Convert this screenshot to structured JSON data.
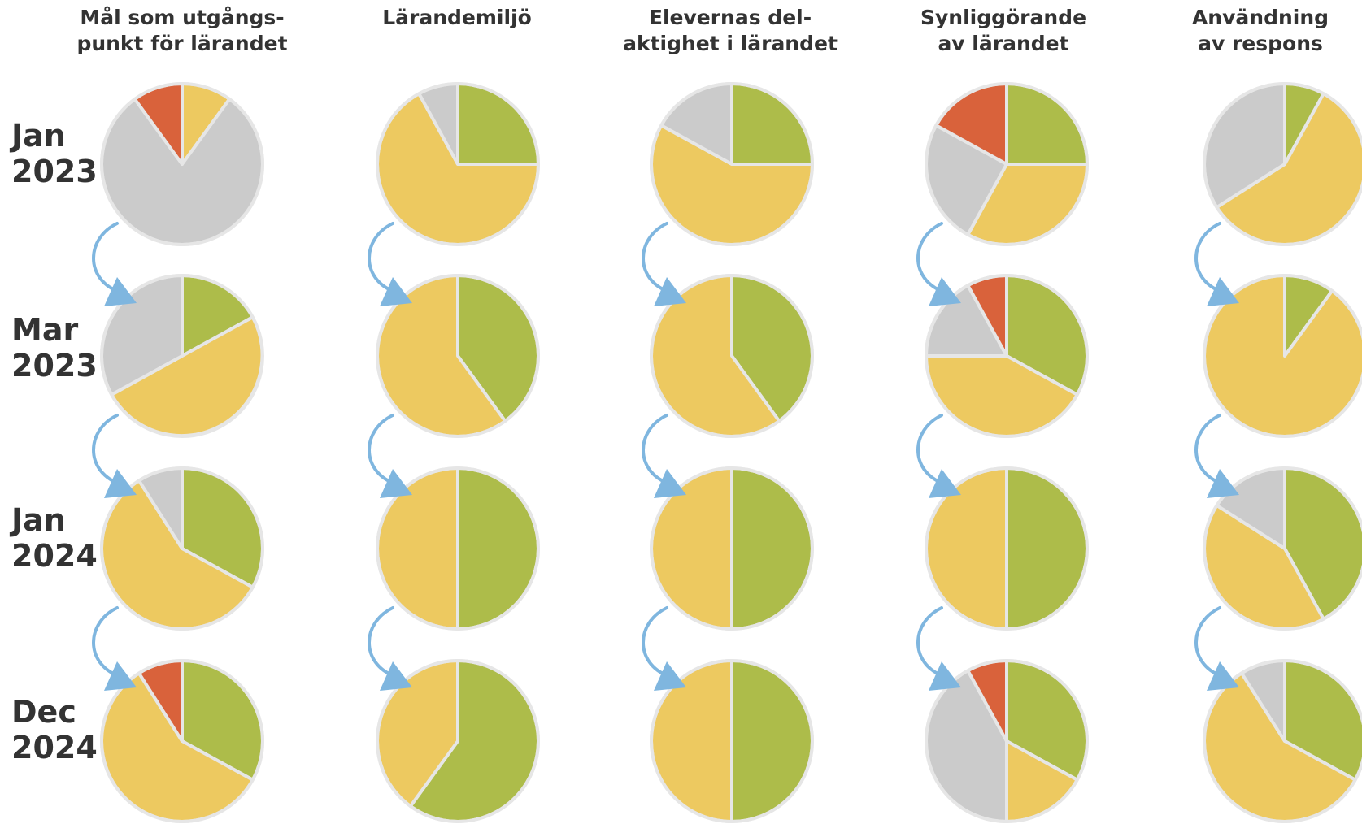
{
  "chart_data": {
    "type": "pie",
    "colors": {
      "green": "#adbc4a",
      "yellow": "#edc960",
      "gray": "#cbcbcb",
      "red": "#d9623b",
      "border": "#e6e6e6",
      "arrow": "#7fb6df"
    },
    "columns": [
      {
        "title": "Mål som utgångs-\npunkt för lärandet"
      },
      {
        "title": "Lärandemiljö"
      },
      {
        "title": "Elevernas del-\naktighet i lärandet"
      },
      {
        "title": "Synliggörande\nav lärandet"
      },
      {
        "title": "Användning\nav respons"
      }
    ],
    "rows": [
      {
        "label": "Jan\n2023"
      },
      {
        "label": "Mar\n2023"
      },
      {
        "label": "Jan\n2024"
      },
      {
        "label": "Dec\n2024"
      }
    ],
    "pies": [
      [
        {
          "green": 0,
          "yellow": 0.1,
          "gray": 0.8,
          "red": 0.1
        },
        {
          "green": 0.17,
          "yellow": 0.5,
          "gray": 0.33,
          "red": 0
        },
        {
          "green": 0.33,
          "yellow": 0.58,
          "gray": 0.09,
          "red": 0
        },
        {
          "green": 0.33,
          "yellow": 0.58,
          "gray": 0,
          "red": 0.09
        }
      ],
      [
        {
          "green": 0.25,
          "yellow": 0.67,
          "gray": 0.08,
          "red": 0
        },
        {
          "green": 0.4,
          "yellow": 0.6,
          "gray": 0,
          "red": 0
        },
        {
          "green": 0.5,
          "yellow": 0.5,
          "gray": 0,
          "red": 0
        },
        {
          "green": 0.6,
          "yellow": 0.4,
          "gray": 0,
          "red": 0
        }
      ],
      [
        {
          "green": 0.25,
          "yellow": 0.58,
          "gray": 0.17,
          "red": 0
        },
        {
          "green": 0.4,
          "yellow": 0.6,
          "gray": 0,
          "red": 0
        },
        {
          "green": 0.5,
          "yellow": 0.5,
          "gray": 0,
          "red": 0
        },
        {
          "green": 0.5,
          "yellow": 0.5,
          "gray": 0,
          "red": 0
        }
      ],
      [
        {
          "green": 0.25,
          "yellow": 0.33,
          "gray": 0.25,
          "red": 0.17
        },
        {
          "green": 0.33,
          "yellow": 0.42,
          "gray": 0.17,
          "red": 0.08
        },
        {
          "green": 0.5,
          "yellow": 0.5,
          "gray": 0,
          "red": 0
        },
        {
          "green": 0.33,
          "yellow": 0.17,
          "gray": 0.42,
          "red": 0.08
        }
      ],
      [
        {
          "green": 0.08,
          "yellow": 0.58,
          "gray": 0.34,
          "red": 0
        },
        {
          "green": 0.1,
          "yellow": 0.9,
          "gray": 0,
          "red": 0
        },
        {
          "green": 0.42,
          "yellow": 0.42,
          "gray": 0.16,
          "red": 0
        },
        {
          "green": 0.33,
          "yellow": 0.58,
          "gray": 0.09,
          "red": 0
        }
      ]
    ]
  }
}
